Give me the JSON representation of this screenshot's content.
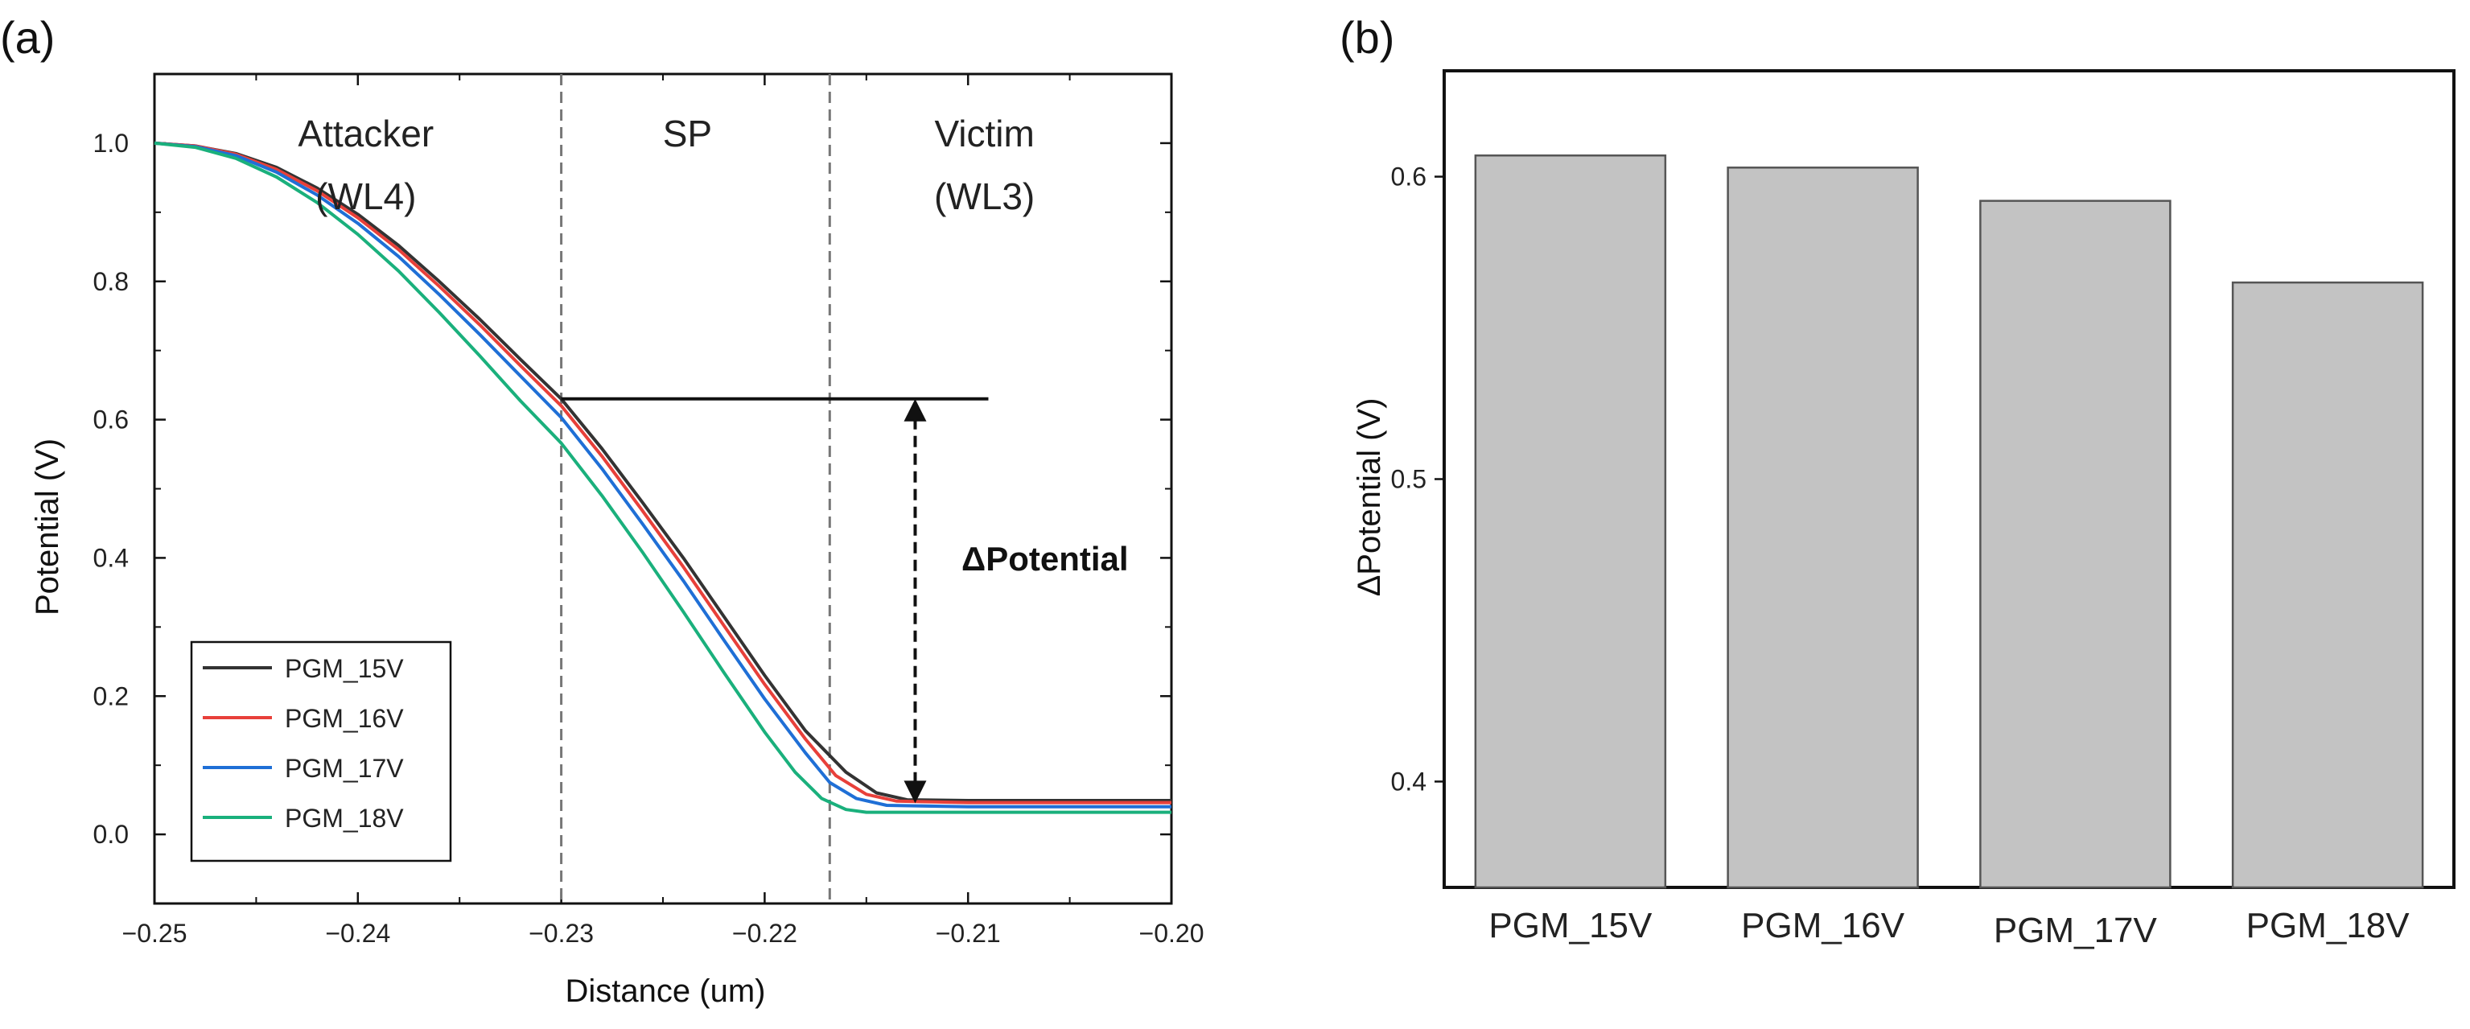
{
  "chart_data": [
    {
      "panel_label": "(a)",
      "type": "line",
      "xlabel": "Distance (um)",
      "ylabel": "Potential (V)",
      "xlim": [
        -0.25,
        -0.2
      ],
      "ylim": [
        -0.1,
        1.1
      ],
      "xticks": [
        -0.25,
        -0.24,
        -0.23,
        -0.22,
        -0.21,
        -0.2
      ],
      "xtick_labels": [
        "−0.25",
        "−0.24",
        "−0.23",
        "−0.22",
        "−0.21",
        "−0.20"
      ],
      "yticks": [
        0.0,
        0.2,
        0.4,
        0.6,
        0.8,
        1.0
      ],
      "ytick_labels": [
        "0.0",
        "0.2",
        "0.4",
        "0.6",
        "0.8",
        "1.0"
      ],
      "legend_position": "bottom-left",
      "regions": [
        {
          "lines": [
            "Attacker",
            "(WL4)"
          ]
        },
        {
          "lines": [
            "SP"
          ]
        },
        {
          "lines": [
            "Victim",
            "(WL3)"
          ]
        }
      ],
      "region_boundaries": [
        -0.23,
        -0.2168
      ],
      "annotation": {
        "label": "ΔPotential",
        "reference_y": 0.63,
        "reference_x_range": [
          -0.23,
          -0.209
        ],
        "arrow_x": -0.2126,
        "arrow_y_range": [
          0.045,
          0.63
        ]
      },
      "series": [
        {
          "name": "PGM_15V",
          "color": "#333333",
          "x": [
            -0.25,
            -0.248,
            -0.246,
            -0.244,
            -0.242,
            -0.24,
            -0.238,
            -0.236,
            -0.234,
            -0.232,
            -0.23,
            -0.228,
            -0.226,
            -0.224,
            -0.222,
            -0.22,
            -0.218,
            -0.216,
            -0.2145,
            -0.213,
            -0.21,
            -0.205,
            -0.2
          ],
          "y": [
            1.0,
            0.996,
            0.985,
            0.965,
            0.935,
            0.897,
            0.852,
            0.8,
            0.745,
            0.687,
            0.63,
            0.558,
            0.48,
            0.4,
            0.315,
            0.23,
            0.15,
            0.09,
            0.06,
            0.05,
            0.049,
            0.049,
            0.049
          ]
        },
        {
          "name": "PGM_16V",
          "color": "#e8403a",
          "x": [
            -0.25,
            -0.248,
            -0.246,
            -0.244,
            -0.242,
            -0.24,
            -0.238,
            -0.236,
            -0.234,
            -0.232,
            -0.23,
            -0.228,
            -0.226,
            -0.224,
            -0.222,
            -0.22,
            -0.218,
            -0.2165,
            -0.215,
            -0.2135,
            -0.21,
            -0.205,
            -0.2
          ],
          "y": [
            1.0,
            0.996,
            0.984,
            0.962,
            0.931,
            0.892,
            0.846,
            0.793,
            0.737,
            0.678,
            0.62,
            0.547,
            0.468,
            0.387,
            0.302,
            0.217,
            0.138,
            0.085,
            0.058,
            0.048,
            0.046,
            0.046,
            0.046
          ]
        },
        {
          "name": "PGM_17V",
          "color": "#1f6fd6",
          "x": [
            -0.25,
            -0.248,
            -0.246,
            -0.244,
            -0.242,
            -0.24,
            -0.238,
            -0.236,
            -0.234,
            -0.232,
            -0.23,
            -0.228,
            -0.226,
            -0.224,
            -0.222,
            -0.22,
            -0.218,
            -0.2168,
            -0.2155,
            -0.214,
            -0.21,
            -0.205,
            -0.2
          ],
          "y": [
            1.0,
            0.995,
            0.982,
            0.958,
            0.925,
            0.884,
            0.836,
            0.781,
            0.723,
            0.663,
            0.603,
            0.529,
            0.449,
            0.367,
            0.281,
            0.196,
            0.118,
            0.075,
            0.052,
            0.042,
            0.04,
            0.04,
            0.04
          ]
        },
        {
          "name": "PGM_18V",
          "color": "#1ab07c",
          "x": [
            -0.25,
            -0.248,
            -0.246,
            -0.244,
            -0.242,
            -0.24,
            -0.238,
            -0.236,
            -0.234,
            -0.232,
            -0.23,
            -0.228,
            -0.226,
            -0.224,
            -0.222,
            -0.22,
            -0.2185,
            -0.2172,
            -0.216,
            -0.215,
            -0.21,
            -0.205,
            -0.2
          ],
          "y": [
            1.0,
            0.994,
            0.978,
            0.951,
            0.914,
            0.868,
            0.815,
            0.755,
            0.692,
            0.627,
            0.566,
            0.49,
            0.408,
            0.322,
            0.234,
            0.148,
            0.09,
            0.052,
            0.036,
            0.032,
            0.032,
            0.032,
            0.032
          ]
        }
      ]
    },
    {
      "panel_label": "(b)",
      "type": "bar",
      "xlabel": "",
      "ylabel": "ΔPotential (V)",
      "ylim": [
        0.365,
        0.635
      ],
      "yticks": [
        0.4,
        0.5,
        0.6
      ],
      "ytick_labels": [
        "0.4",
        "0.5",
        "0.6"
      ],
      "bar_color": "#c3c3c3",
      "bar_edge_color": "#555555",
      "categories": [
        "PGM_15V",
        "PGM_16V",
        "PGM_17V",
        "PGM_18V"
      ],
      "values": [
        0.607,
        0.603,
        0.592,
        0.565
      ]
    }
  ]
}
